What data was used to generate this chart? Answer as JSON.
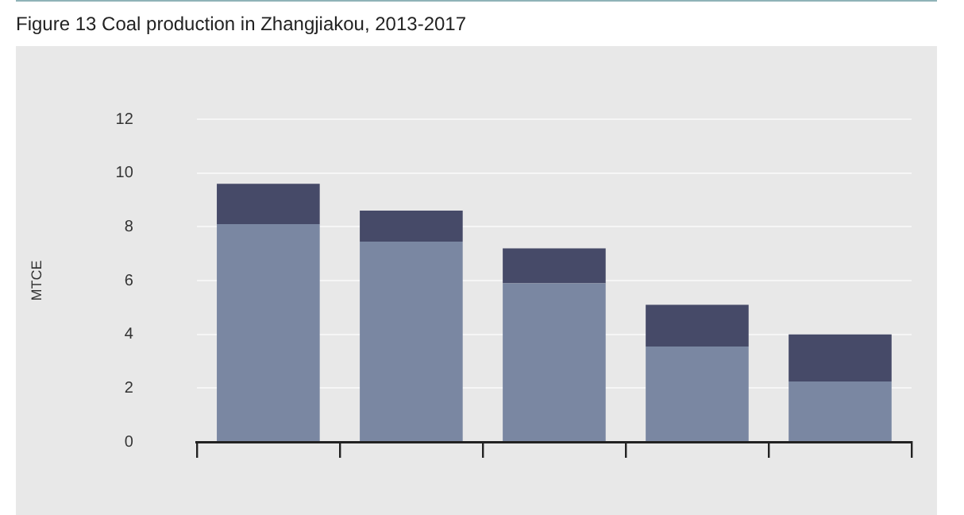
{
  "chart_data": {
    "type": "bar",
    "title": "Figure 13  Coal production in Zhangjiakou, 2013-2017",
    "ylabel": "MTCE",
    "categories": [
      null,
      null,
      null,
      null,
      null
    ],
    "series": [
      {
        "color": "#7a87a2",
        "values": [
          8.1,
          7.45,
          5.9,
          3.55,
          2.25
        ]
      },
      {
        "color": "#464a68",
        "values": [
          1.5,
          1.15,
          1.3,
          1.55,
          1.75
        ]
      }
    ],
    "stacked": true,
    "ylim": [
      0,
      12
    ],
    "yticks": [
      0,
      2,
      4,
      6,
      8,
      10,
      12
    ],
    "grid": "y",
    "legend": false,
    "tick_labels": "y"
  }
}
